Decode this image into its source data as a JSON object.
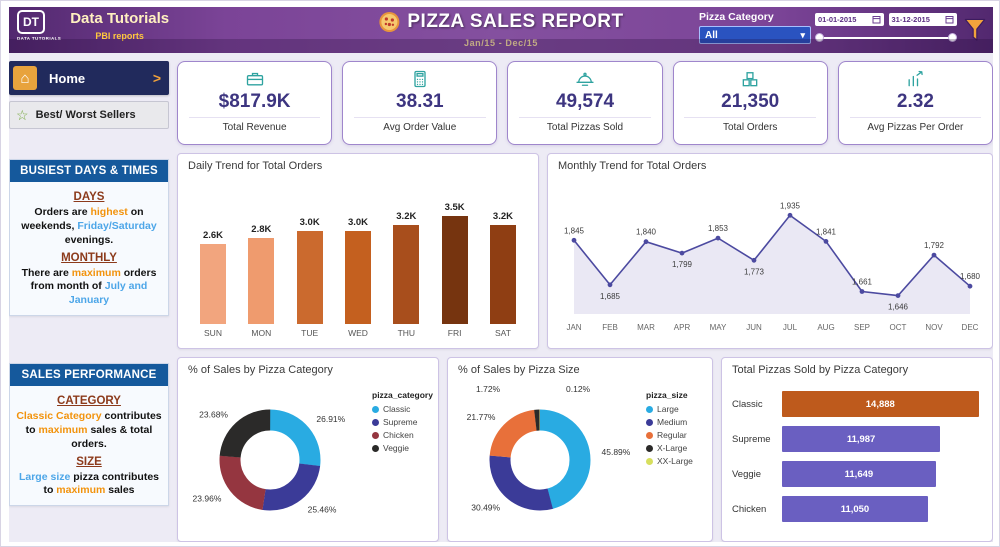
{
  "colors": {
    "header_purple": "#6B3E92",
    "accent_orange": "#F2930D",
    "accent_blue": "#4DA6E8",
    "kpi_value_purple": "#3D3580",
    "section_header_blue": "#15599C",
    "heading_maroon": "#8C3A1B",
    "dropdown_blue": "#2A53C0",
    "panel_border": "#CDC3E5"
  },
  "header": {
    "logo_monogram": "DT",
    "logo_caption": "DATA TUTORIALS",
    "brand_title": "Data Tutorials",
    "brand_subtitle": "PBI reports",
    "report_title": "PIZZA SALES REPORT",
    "report_period": "Jan/15 - Dec/15",
    "category_filter_label": "Pizza Category",
    "category_filter_value": "All",
    "date_from": "01-01-2015",
    "date_to": "31-12-2015"
  },
  "sidebar": {
    "home_label": "Home",
    "best_worst_label": "Best/ Worst Sellers",
    "busiest": {
      "title": "BUSIEST DAYS & TIMES",
      "days_heading": "DAYS",
      "days_segments": {
        "s1": "Orders are ",
        "s2": "highest",
        "s3": " on weekends, ",
        "s4": "Friday/Saturday",
        "s5": " evenings."
      },
      "monthly_heading": "MONTHLY",
      "monthly_segments": {
        "s1": "There are ",
        "s2": "maximum",
        "s3": " orders from month of ",
        "s4": "July and January"
      }
    },
    "performance": {
      "title": "SALES PERFORMANCE",
      "category_heading": "CATEGORY",
      "category_segments": {
        "s1": "Classic Category",
        "s2": " contributes to ",
        "s3": "maximum",
        "s4": " sales & total orders."
      },
      "size_heading": "SIZE",
      "size_segments": {
        "s1": "Large size",
        "s2": " pizza contributes to ",
        "s3": "maximum",
        "s4": " sales"
      }
    }
  },
  "kpis": [
    {
      "value": "$817.9K",
      "label": "Total Revenue"
    },
    {
      "value": "38.31",
      "label": "Avg Order Value"
    },
    {
      "value": "49,574",
      "label": "Total Pizzas Sold"
    },
    {
      "value": "21,350",
      "label": "Total Orders"
    },
    {
      "value": "2.32",
      "label": "Avg Pizzas Per Order"
    }
  ],
  "chart_data": [
    {
      "type": "bar",
      "title": "Daily Trend for Total Orders",
      "categories": [
        "SUN",
        "MON",
        "TUE",
        "WED",
        "THU",
        "FRI",
        "SAT"
      ],
      "values": [
        2600,
        2800,
        3000,
        3000,
        3200,
        3500,
        3200
      ],
      "value_labels": [
        "2.6K",
        "2.8K",
        "3.0K",
        "3.0K",
        "3.2K",
        "3.5K",
        "3.2K"
      ],
      "bar_colors": [
        "#F2A57E",
        "#EF9B6E",
        "#CB6A2E",
        "#C4601F",
        "#A84E1C",
        "#76340F",
        "#8F3E13"
      ],
      "ylim": [
        0,
        3500
      ]
    },
    {
      "type": "line",
      "title": "Monthly Trend for Total Orders",
      "categories": [
        "JAN",
        "FEB",
        "MAR",
        "APR",
        "MAY",
        "JUN",
        "JUL",
        "AUG",
        "SEP",
        "OCT",
        "NOV",
        "DEC"
      ],
      "values": [
        1845,
        1685,
        1840,
        1799,
        1853,
        1773,
        1935,
        1841,
        1661,
        1646,
        1792,
        1680
      ],
      "value_labels": [
        "1,845",
        "1,685",
        "1,840",
        "1,799",
        "1,853",
        "1,773",
        "1,935",
        "1,841",
        "1,661",
        "1,646",
        "1,792",
        "1,680"
      ],
      "line_color": "#4C4AA0",
      "area_fill": "#E6E4F2",
      "ylim": [
        1580,
        1990
      ]
    },
    {
      "type": "pie",
      "title": "% of Sales by Pizza Category",
      "legend_title": "pizza_category",
      "slices": [
        {
          "label": "Classic",
          "value": 26.91,
          "pct_label": "26.91%",
          "color": "#29ABE2"
        },
        {
          "label": "Supreme",
          "value": 25.46,
          "pct_label": "25.46%",
          "color": "#3B3B98"
        },
        {
          "label": "Chicken",
          "value": 23.96,
          "pct_label": "23.96%",
          "color": "#953640"
        },
        {
          "label": "Veggie",
          "value": 23.68,
          "pct_label": "23.68%",
          "color": "#2B2A29"
        }
      ]
    },
    {
      "type": "pie",
      "title": "% of Sales by Pizza Size",
      "legend_title": "pizza_size",
      "slices": [
        {
          "label": "Large",
          "value": 45.89,
          "pct_label": "45.89%",
          "color": "#29ABE2"
        },
        {
          "label": "Medium",
          "value": 30.49,
          "pct_label": "30.49%",
          "color": "#3B3B98"
        },
        {
          "label": "Regular",
          "value": 21.77,
          "pct_label": "21.77%",
          "color": "#E8703A"
        },
        {
          "label": "X-Large",
          "value": 1.72,
          "pct_label": "1.72%",
          "color": "#2B2A29"
        },
        {
          "label": "XX-Large",
          "value": 0.12,
          "pct_label": "0.12%",
          "color": "#D7DF5E"
        }
      ]
    },
    {
      "type": "bar",
      "orientation": "horizontal",
      "title": "Total Pizzas Sold by Pizza Category",
      "categories": [
        "Classic",
        "Supreme",
        "Veggie",
        "Chicken"
      ],
      "values": [
        14888,
        11987,
        11649,
        11050
      ],
      "value_labels": [
        "14,888",
        "11,987",
        "11,649",
        "11,050"
      ],
      "bar_colors": [
        "#BE5A1C",
        "#6A5FC1",
        "#6A5FC1",
        "#6A5FC1"
      ],
      "xlim": [
        0,
        15000
      ]
    }
  ]
}
